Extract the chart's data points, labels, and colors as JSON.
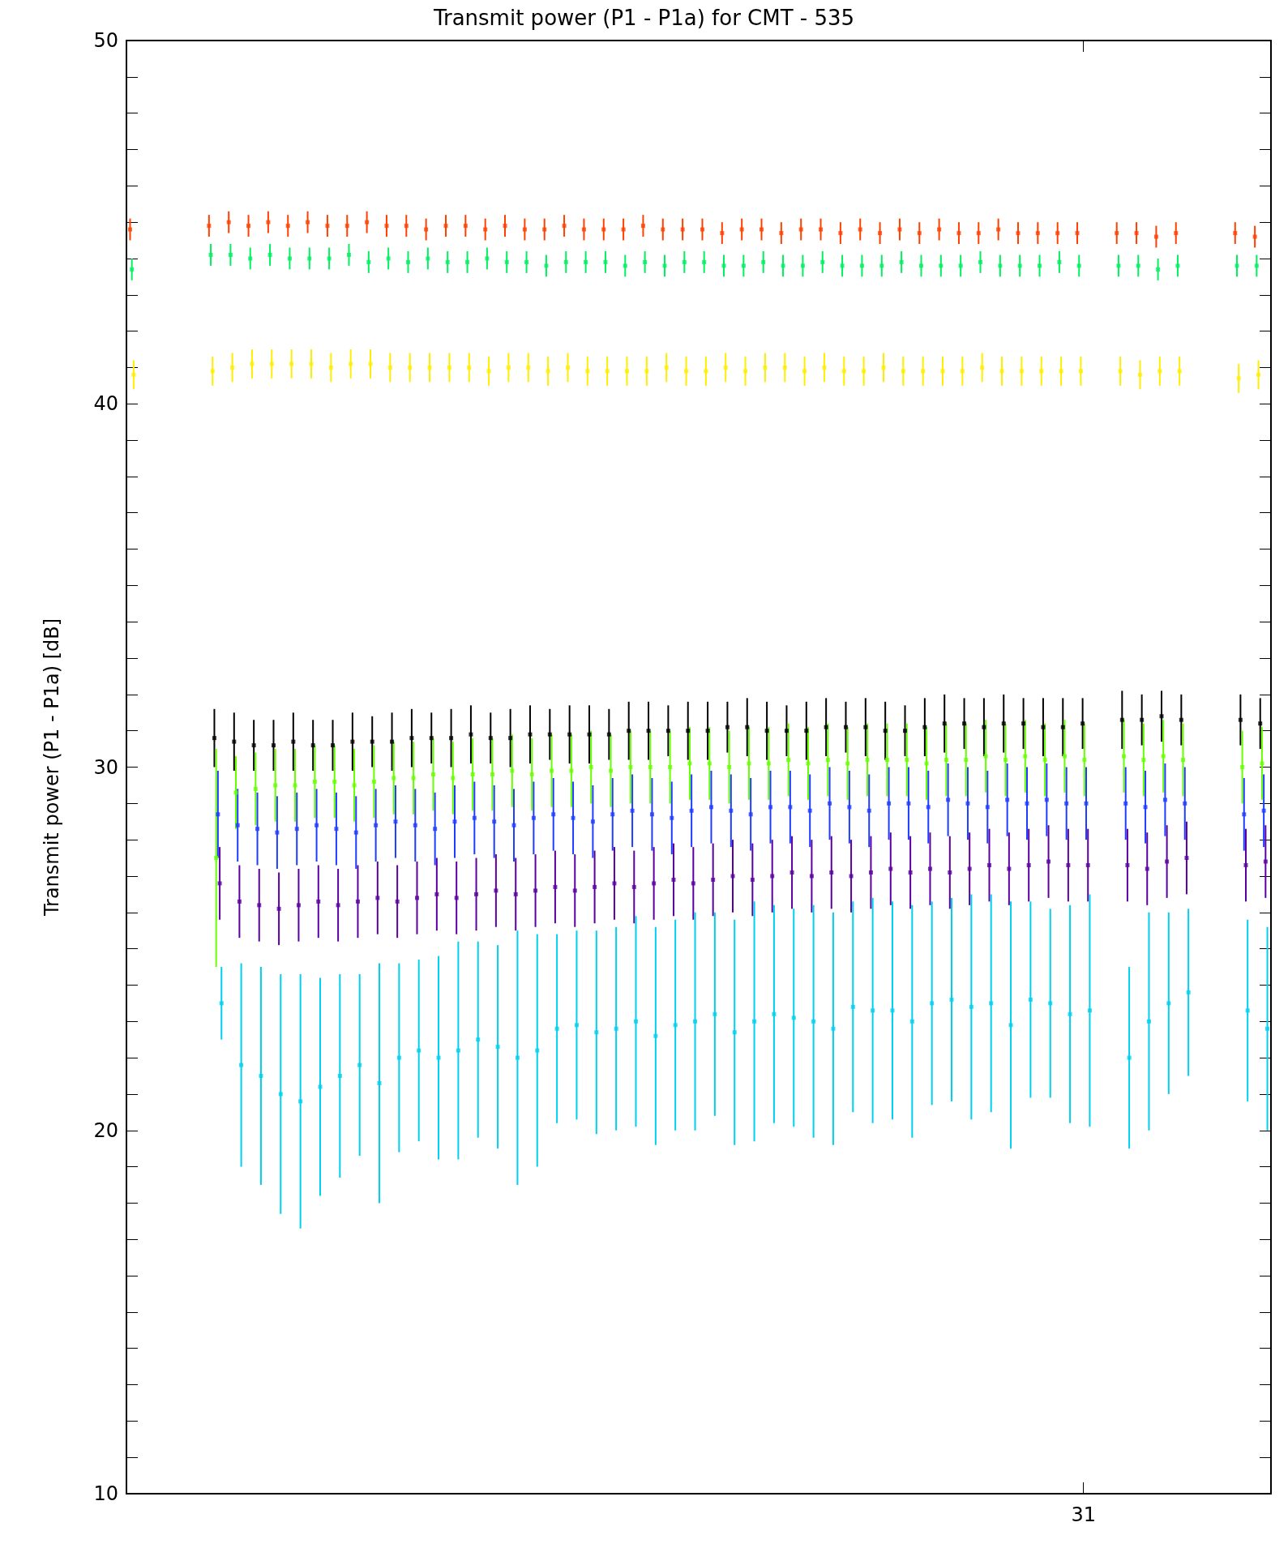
{
  "chart_data": {
    "type": "scatter",
    "title": "Transmit power (P1 - P1a) for CMT - 535",
    "ylabel": "Transmit power (P1 - P1a) [dB]",
    "categories": [
      null,
      null,
      null,
      null,
      null,
      null,
      null,
      null,
      null,
      null,
      null,
      null,
      null,
      null,
      null,
      null,
      null,
      null,
      null,
      null,
      null,
      null,
      null,
      null,
      null,
      null,
      null,
      null,
      null,
      null,
      null,
      null,
      null,
      null,
      null,
      null,
      null,
      null,
      null,
      null,
      null,
      null,
      null,
      null,
      null,
      null,
      null,
      null,
      "31",
      null,
      null,
      null,
      null,
      null,
      null,
      null,
      null,
      null
    ],
    "ylim": [
      10,
      50
    ],
    "yticks": [
      10,
      {
        "value": 11,
        "label": null
      },
      {
        "value": 12,
        "label": null
      },
      {
        "value": 13,
        "label": null
      },
      {
        "value": 14,
        "label": null
      },
      {
        "value": 15,
        "label": null
      },
      {
        "value": 16,
        "label": null
      },
      {
        "value": 17,
        "label": null
      },
      {
        "value": 18,
        "label": null
      },
      {
        "value": 19,
        "label": null
      },
      20,
      {
        "value": 21,
        "label": null
      },
      {
        "value": 22,
        "label": null
      },
      {
        "value": 23,
        "label": null
      },
      {
        "value": 24,
        "label": null
      },
      {
        "value": 25,
        "label": null
      },
      {
        "value": 26,
        "label": null
      },
      {
        "value": 27,
        "label": null
      },
      {
        "value": 28,
        "label": null
      },
      {
        "value": 29,
        "label": null
      },
      30,
      {
        "value": 31,
        "label": null
      },
      {
        "value": 32,
        "label": null
      },
      {
        "value": 33,
        "label": null
      },
      {
        "value": 34,
        "label": null
      },
      {
        "value": 35,
        "label": null
      },
      {
        "value": 36,
        "label": null
      },
      {
        "value": 37,
        "label": null
      },
      {
        "value": 38,
        "label": null
      },
      {
        "value": 39,
        "label": null
      },
      40,
      {
        "value": 41,
        "label": null
      },
      {
        "value": 42,
        "label": null
      },
      {
        "value": 43,
        "label": null
      },
      {
        "value": 44,
        "label": null
      },
      {
        "value": 45,
        "label": null
      },
      {
        "value": 46,
        "label": null
      },
      {
        "value": 47,
        "label": null
      },
      {
        "value": 48,
        "label": null
      },
      {
        "value": 49,
        "label": null
      },
      50
    ],
    "grid": false,
    "marker": "square",
    "series": [
      {
        "color": "#ff4000",
        "values": [
          44.8,
          null,
          null,
          null,
          44.9,
          45.0,
          44.9,
          45.0,
          44.9,
          45.0,
          44.9,
          44.9,
          45.0,
          44.9,
          44.9,
          44.8,
          44.9,
          44.9,
          44.8,
          44.9,
          44.8,
          44.8,
          44.9,
          44.8,
          44.8,
          44.8,
          44.9,
          44.8,
          44.8,
          44.8,
          44.7,
          44.8,
          44.8,
          44.7,
          44.8,
          44.8,
          44.7,
          44.8,
          44.7,
          44.8,
          44.7,
          44.8,
          44.7,
          44.7,
          44.8,
          44.7,
          44.7,
          44.7,
          44.7,
          null,
          44.7,
          44.7,
          44.6,
          44.7,
          null,
          null,
          44.7,
          44.6
        ],
        "errors": [
          0.3,
          null,
          null,
          null,
          0.3,
          0.3,
          0.3,
          0.3,
          0.3,
          0.3,
          0.3,
          0.3,
          0.3,
          0.3,
          0.3,
          0.3,
          0.3,
          0.3,
          0.3,
          0.3,
          0.3,
          0.3,
          0.3,
          0.3,
          0.3,
          0.3,
          0.3,
          0.3,
          0.3,
          0.3,
          0.3,
          0.3,
          0.3,
          0.3,
          0.3,
          0.3,
          0.3,
          0.3,
          0.3,
          0.3,
          0.3,
          0.3,
          0.3,
          0.3,
          0.3,
          0.3,
          0.3,
          0.3,
          0.3,
          null,
          0.3,
          0.3,
          0.3,
          0.3,
          null,
          null,
          0.3,
          0.3
        ]
      },
      {
        "color": "#00f060",
        "values": [
          43.7,
          null,
          null,
          null,
          44.1,
          44.1,
          44.0,
          44.1,
          44.0,
          44.0,
          44.0,
          44.1,
          43.9,
          44.0,
          43.9,
          44.0,
          43.9,
          43.9,
          44.0,
          43.9,
          43.9,
          43.8,
          43.9,
          43.9,
          43.9,
          43.8,
          43.9,
          43.8,
          43.9,
          43.9,
          43.8,
          43.8,
          43.9,
          43.8,
          43.8,
          43.9,
          43.8,
          43.8,
          43.8,
          43.9,
          43.8,
          43.8,
          43.8,
          43.9,
          43.8,
          43.8,
          43.8,
          43.9,
          43.8,
          null,
          43.8,
          43.8,
          43.7,
          43.8,
          null,
          null,
          43.8,
          43.8
        ],
        "errors": [
          0.3,
          null,
          null,
          null,
          0.3,
          0.3,
          0.3,
          0.3,
          0.3,
          0.3,
          0.3,
          0.3,
          0.3,
          0.3,
          0.3,
          0.3,
          0.3,
          0.3,
          0.3,
          0.3,
          0.3,
          0.3,
          0.3,
          0.3,
          0.3,
          0.3,
          0.3,
          0.3,
          0.3,
          0.3,
          0.3,
          0.3,
          0.3,
          0.3,
          0.3,
          0.3,
          0.3,
          0.3,
          0.3,
          0.3,
          0.3,
          0.3,
          0.3,
          0.3,
          0.3,
          0.3,
          0.3,
          0.3,
          0.3,
          null,
          0.3,
          0.3,
          0.3,
          0.3,
          null,
          null,
          0.3,
          0.3
        ]
      },
      {
        "color": "#ffee00",
        "values": [
          40.8,
          null,
          null,
          null,
          40.9,
          41.0,
          41.1,
          41.1,
          41.1,
          41.1,
          41.0,
          41.1,
          41.1,
          41.0,
          41.0,
          41.0,
          41.0,
          41.0,
          40.9,
          41.0,
          41.0,
          40.9,
          41.0,
          40.9,
          40.9,
          40.9,
          40.9,
          41.0,
          40.9,
          40.9,
          41.0,
          40.9,
          41.0,
          41.0,
          40.9,
          41.0,
          40.9,
          40.9,
          41.0,
          40.9,
          40.9,
          40.9,
          40.9,
          41.0,
          40.9,
          40.9,
          40.9,
          40.9,
          40.9,
          null,
          40.9,
          40.8,
          40.9,
          40.9,
          null,
          null,
          40.7,
          40.8
        ],
        "errors": [
          0.4,
          null,
          null,
          null,
          0.4,
          0.4,
          0.4,
          0.4,
          0.4,
          0.4,
          0.4,
          0.4,
          0.4,
          0.4,
          0.4,
          0.4,
          0.4,
          0.4,
          0.4,
          0.4,
          0.4,
          0.4,
          0.4,
          0.4,
          0.4,
          0.4,
          0.4,
          0.4,
          0.4,
          0.4,
          0.4,
          0.4,
          0.4,
          0.4,
          0.4,
          0.4,
          0.4,
          0.4,
          0.4,
          0.4,
          0.4,
          0.4,
          0.4,
          0.4,
          0.4,
          0.4,
          0.4,
          0.4,
          0.4,
          null,
          0.4,
          0.4,
          0.4,
          0.4,
          null,
          null,
          0.4,
          0.4
        ]
      },
      {
        "color": "#000000",
        "values": [
          null,
          null,
          null,
          null,
          30.8,
          30.7,
          30.6,
          30.6,
          30.7,
          30.6,
          30.6,
          30.7,
          30.7,
          30.7,
          30.8,
          30.8,
          30.8,
          30.9,
          30.8,
          30.8,
          30.9,
          30.9,
          30.9,
          30.9,
          30.9,
          31.0,
          31.0,
          31.0,
          31.0,
          31.0,
          31.1,
          31.1,
          31.0,
          31.0,
          31.0,
          31.1,
          31.1,
          31.1,
          31.0,
          31.0,
          31.1,
          31.2,
          31.2,
          31.1,
          31.2,
          31.2,
          31.1,
          31.1,
          31.2,
          null,
          31.3,
          31.3,
          31.4,
          31.3,
          null,
          null,
          31.3,
          31.2
        ],
        "errors": [
          null,
          null,
          null,
          null,
          0.8,
          0.8,
          0.7,
          0.7,
          0.8,
          0.7,
          0.7,
          0.8,
          0.7,
          0.8,
          0.8,
          0.7,
          0.8,
          0.8,
          0.7,
          0.8,
          0.8,
          0.7,
          0.8,
          0.8,
          0.7,
          0.8,
          0.8,
          0.7,
          0.8,
          0.8,
          0.7,
          0.8,
          0.8,
          0.7,
          0.8,
          0.8,
          0.7,
          0.8,
          0.8,
          0.7,
          0.8,
          0.8,
          0.7,
          0.8,
          0.8,
          0.7,
          0.8,
          0.8,
          0.7,
          null,
          0.8,
          0.7,
          0.7,
          0.7,
          null,
          null,
          0.7,
          0.7
        ]
      },
      {
        "color": "#66ff00",
        "values": [
          null,
          null,
          null,
          null,
          27.5,
          29.3,
          29.4,
          29.5,
          29.5,
          29.6,
          29.6,
          29.5,
          29.6,
          29.7,
          29.7,
          29.8,
          29.7,
          29.8,
          29.8,
          29.9,
          29.8,
          29.9,
          29.9,
          30.0,
          29.9,
          30.0,
          30.0,
          30.0,
          30.1,
          30.1,
          30.0,
          30.1,
          30.1,
          30.2,
          30.1,
          30.2,
          30.1,
          30.2,
          30.2,
          30.2,
          30.1,
          30.2,
          30.2,
          30.3,
          30.2,
          30.3,
          30.2,
          30.3,
          30.2,
          null,
          30.3,
          30.2,
          30.3,
          30.2,
          null,
          null,
          30.0,
          30.1
        ],
        "errors": [
          null,
          null,
          null,
          null,
          3.0,
          1.0,
          1.0,
          1.0,
          1.0,
          1.0,
          1.0,
          1.0,
          1.0,
          1.0,
          1.0,
          1.0,
          1.0,
          1.0,
          1.0,
          1.0,
          1.0,
          1.0,
          1.0,
          1.0,
          1.0,
          1.0,
          1.0,
          1.0,
          1.0,
          1.0,
          1.0,
          1.0,
          1.0,
          1.0,
          1.0,
          1.0,
          1.0,
          1.0,
          1.0,
          1.0,
          1.0,
          1.0,
          1.0,
          1.0,
          1.0,
          1.0,
          1.0,
          1.0,
          1.0,
          null,
          1.0,
          1.0,
          1.0,
          1.0,
          null,
          null,
          1.0,
          1.0
        ]
      },
      {
        "color": "#1e3cff",
        "values": [
          null,
          null,
          null,
          null,
          28.7,
          28.4,
          28.3,
          28.2,
          28.3,
          28.4,
          28.3,
          28.2,
          28.4,
          28.5,
          28.4,
          28.3,
          28.5,
          28.6,
          28.5,
          28.4,
          28.6,
          28.7,
          28.6,
          28.5,
          28.7,
          28.8,
          28.7,
          28.6,
          28.8,
          28.9,
          28.8,
          28.7,
          28.9,
          28.9,
          28.8,
          29.0,
          28.9,
          28.8,
          29.0,
          29.0,
          28.9,
          29.1,
          29.0,
          28.9,
          29.1,
          29.0,
          29.1,
          29.0,
          29.0,
          null,
          29.0,
          28.9,
          29.1,
          29.0,
          null,
          null,
          28.7,
          28.8
        ],
        "errors": [
          null,
          null,
          null,
          null,
          1.2,
          1.0,
          1.0,
          1.0,
          1.0,
          1.0,
          1.0,
          1.0,
          1.0,
          1.0,
          1.0,
          1.0,
          1.0,
          1.0,
          1.0,
          1.0,
          1.0,
          1.0,
          1.0,
          1.0,
          1.0,
          1.0,
          1.0,
          1.0,
          1.0,
          1.0,
          1.0,
          1.0,
          1.0,
          1.0,
          1.0,
          1.0,
          1.0,
          1.0,
          1.0,
          1.0,
          1.0,
          1.0,
          1.0,
          1.0,
          1.0,
          1.0,
          1.0,
          1.0,
          1.0,
          null,
          1.0,
          1.0,
          1.0,
          1.0,
          null,
          null,
          1.0,
          1.0
        ]
      },
      {
        "color": "#5a00a0",
        "values": [
          null,
          null,
          null,
          null,
          26.8,
          26.3,
          26.2,
          26.1,
          26.2,
          26.3,
          26.2,
          26.3,
          26.4,
          26.3,
          26.4,
          26.5,
          26.4,
          26.5,
          26.6,
          26.5,
          26.6,
          26.7,
          26.6,
          26.7,
          26.8,
          26.7,
          26.8,
          26.9,
          26.8,
          26.9,
          27.0,
          26.9,
          27.0,
          27.1,
          27.0,
          27.1,
          27.0,
          27.1,
          27.2,
          27.1,
          27.2,
          27.1,
          27.2,
          27.3,
          27.2,
          27.3,
          27.4,
          27.3,
          27.3,
          null,
          27.3,
          27.2,
          27.4,
          27.5,
          null,
          null,
          27.3,
          27.4
        ],
        "errors": [
          null,
          null,
          null,
          null,
          1.0,
          1.0,
          1.0,
          1.0,
          1.0,
          1.0,
          1.0,
          1.0,
          1.0,
          1.0,
          1.0,
          1.0,
          1.0,
          1.0,
          1.0,
          1.0,
          1.0,
          1.0,
          1.0,
          1.0,
          1.0,
          1.0,
          1.0,
          1.0,
          1.0,
          1.0,
          1.0,
          1.0,
          1.0,
          1.0,
          1.0,
          1.0,
          1.0,
          1.0,
          1.0,
          1.0,
          1.0,
          1.0,
          1.0,
          1.0,
          1.0,
          1.0,
          1.0,
          1.0,
          1.0,
          null,
          1.0,
          1.0,
          1.0,
          1.0,
          null,
          null,
          1.0,
          1.0
        ]
      },
      {
        "color": "#00d0f0",
        "values": [
          null,
          null,
          null,
          null,
          23.5,
          21.8,
          21.5,
          21.0,
          20.8,
          21.2,
          21.5,
          21.8,
          21.3,
          22.0,
          22.2,
          22.0,
          22.2,
          22.5,
          22.3,
          22.0,
          22.2,
          22.8,
          22.9,
          22.7,
          22.8,
          23.0,
          22.6,
          22.9,
          23.0,
          23.2,
          22.7,
          23.0,
          23.2,
          23.1,
          23.0,
          22.8,
          23.4,
          23.3,
          23.3,
          23.0,
          23.5,
          23.6,
          23.4,
          23.5,
          22.9,
          23.6,
          23.5,
          23.2,
          23.3,
          null,
          22.0,
          23.0,
          23.5,
          23.8,
          null,
          null,
          23.3,
          22.8
        ],
        "errors": [
          null,
          null,
          null,
          null,
          1.0,
          2.8,
          3.0,
          3.3,
          3.5,
          3.0,
          2.8,
          2.5,
          3.3,
          2.6,
          2.5,
          2.8,
          3.0,
          2.7,
          2.8,
          3.5,
          3.2,
          2.6,
          2.6,
          2.8,
          2.8,
          2.9,
          3.0,
          2.9,
          3.0,
          2.8,
          3.1,
          3.3,
          3.0,
          3.0,
          3.2,
          3.2,
          2.9,
          3.1,
          3.0,
          3.2,
          2.8,
          2.8,
          3.1,
          3.0,
          3.4,
          2.7,
          2.6,
          3.0,
          3.2,
          null,
          2.5,
          3.0,
          2.5,
          2.3,
          null,
          null,
          2.5,
          2.8
        ]
      }
    ]
  }
}
